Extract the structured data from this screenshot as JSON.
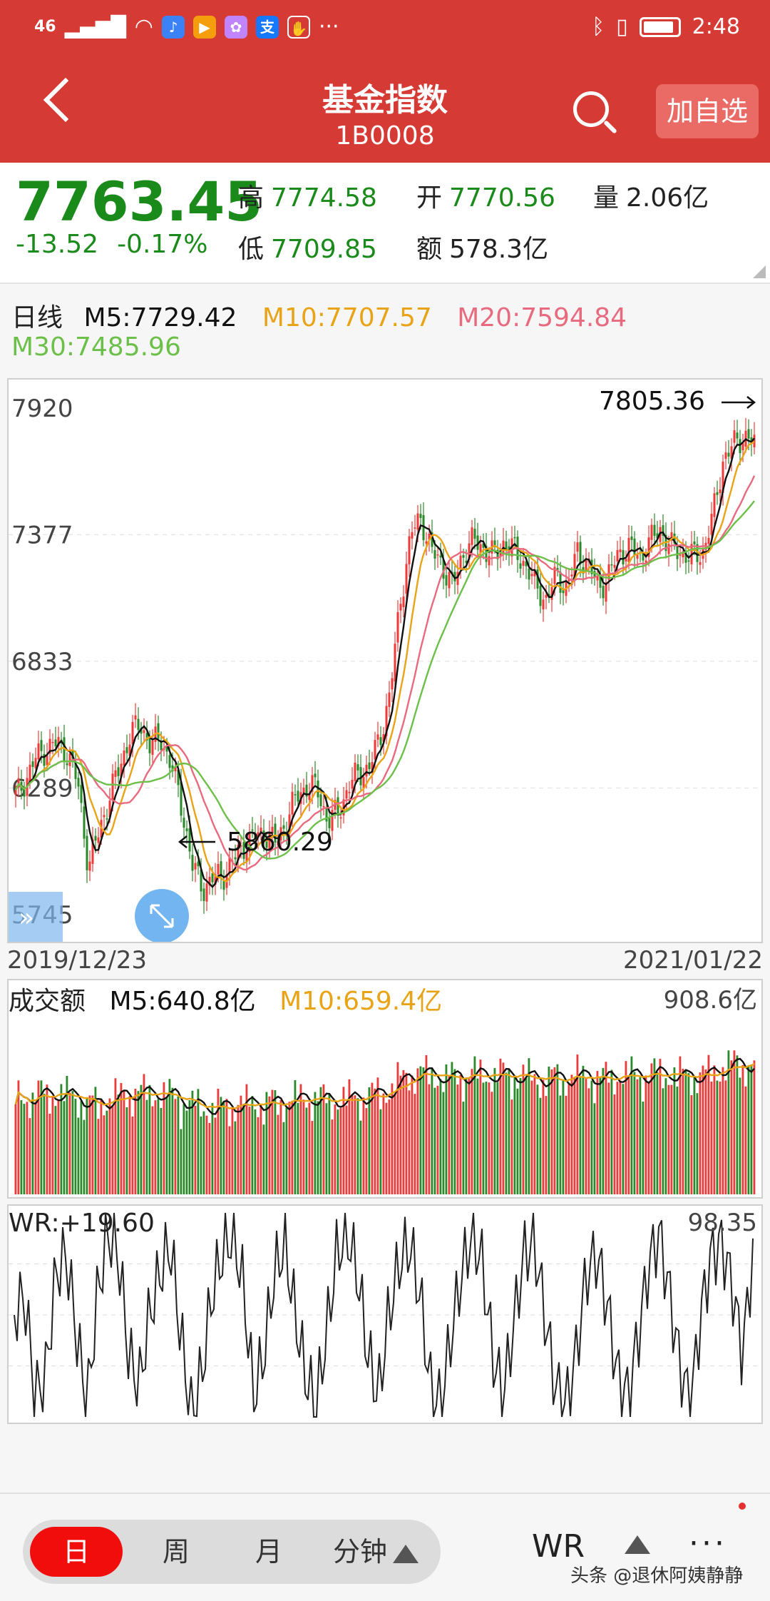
{
  "status_bar": {
    "signal": "46",
    "time": "2:48",
    "app_icons": [
      "music-app-icon",
      "video-app-icon",
      "gallery-app-icon",
      "alipay-icon",
      "hand-icon"
    ],
    "more": "···"
  },
  "header": {
    "title": "基金指数",
    "code": "1B0008",
    "add_button": "加自选"
  },
  "quote": {
    "price": "7763.45",
    "change": "-13.52",
    "change_pct": "-0.17%",
    "high_label": "高",
    "high": "7774.58",
    "open_label": "开",
    "open": "7770.56",
    "volume_label": "量",
    "volume": "2.06亿",
    "low_label": "低",
    "low": "7709.85",
    "amount_label": "额",
    "amount": "578.3亿"
  },
  "kline_legend": {
    "period": "日线",
    "m5": "M5:7729.42",
    "m10": "M10:7707.57",
    "m20": "M20:7594.84",
    "m30": "M30:7485.96"
  },
  "colors": {
    "up": "#f03a3a",
    "down": "#2a8a2a",
    "m5": "#111111",
    "m10": "#e8a317",
    "m20": "#e86a7e",
    "m30": "#6cc04a"
  },
  "chart_data": [
    {
      "type": "candlestick",
      "y_ticks": [
        "7920",
        "7377",
        "6833",
        "6289",
        "5745"
      ],
      "ylim": [
        5745,
        7920
      ],
      "x_start_label": "2019/12/23",
      "x_end_label": "2021/01/22",
      "high_annotation": "7805.36",
      "low_annotation": "5860.29",
      "close_path": [
        6250,
        6330,
        6420,
        6460,
        6480,
        6440,
        6300,
        5950,
        6100,
        6250,
        6380,
        6520,
        6560,
        6470,
        6500,
        6380,
        6200,
        5950,
        5860,
        5900,
        5920,
        5980,
        6050,
        6080,
        6100,
        6050,
        6150,
        6250,
        6300,
        6280,
        6150,
        6180,
        6300,
        6350,
        6380,
        6500,
        6700,
        7100,
        7380,
        7450,
        7300,
        7250,
        7150,
        7300,
        7350,
        7320,
        7280,
        7350,
        7300,
        7250,
        7150,
        7100,
        7200,
        7150,
        7300,
        7250,
        7150,
        7200,
        7300,
        7320,
        7280,
        7350,
        7400,
        7320,
        7300,
        7280,
        7300,
        7450,
        7700,
        7760,
        7805,
        7763
      ]
    },
    {
      "type": "bar",
      "title": "成交额",
      "m5": "M5:640.8亿",
      "m10": "M10:659.4亿",
      "max_label": "908.6亿"
    },
    {
      "type": "line",
      "title": "WR:+19.60",
      "max_label": "98.35",
      "values": [
        50,
        40,
        90,
        80,
        30,
        20,
        60,
        95,
        40,
        10,
        20,
        70,
        85,
        50,
        30,
        15,
        60,
        98,
        80,
        40,
        20,
        10,
        35,
        90,
        70,
        30,
        15,
        50,
        80,
        95,
        60,
        20,
        10,
        30,
        70,
        90,
        50,
        25,
        15,
        40,
        85,
        95,
        60,
        30,
        10,
        25,
        70,
        90,
        55,
        20,
        15,
        50,
        85,
        95,
        70,
        30,
        20,
        45,
        80,
        90,
        60,
        25,
        10,
        40,
        75,
        95,
        50,
        20,
        15,
        35,
        70,
        19.6
      ]
    }
  ],
  "bottom_bar": {
    "tabs": [
      "日",
      "周",
      "月",
      "分钟"
    ],
    "indicator": "WR",
    "more": "···",
    "watermark": "头条 @退休阿姨静静"
  }
}
